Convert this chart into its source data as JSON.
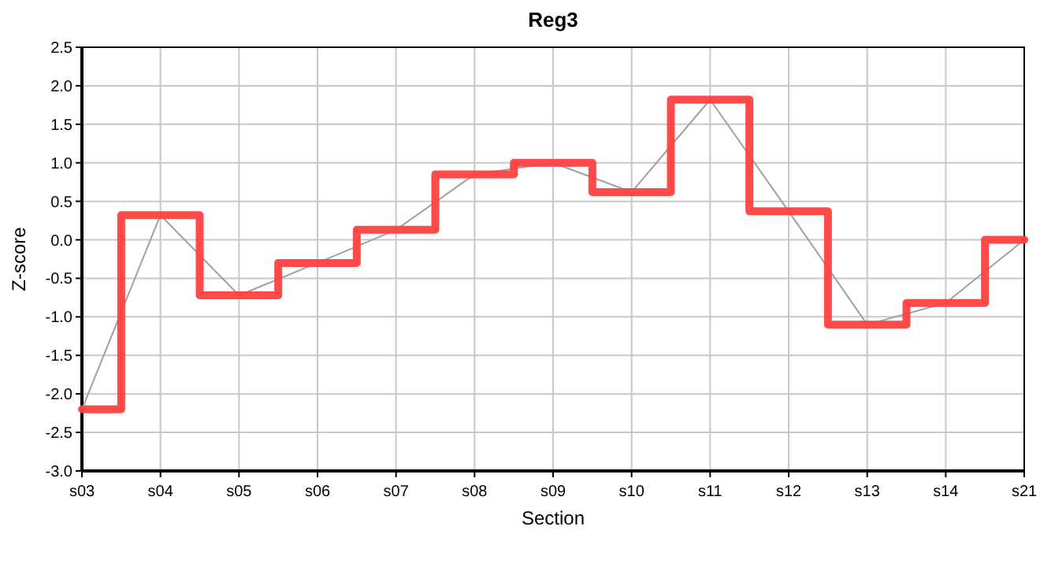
{
  "chart_data": {
    "type": "step",
    "title": "Reg3",
    "xlabel": "Section",
    "ylabel": "Z-score",
    "categories": [
      "s03",
      "s04",
      "s05",
      "s06",
      "s07",
      "s08",
      "s09",
      "s10",
      "s11",
      "s12",
      "s13",
      "s14",
      "s21"
    ],
    "series": [
      {
        "type": "line",
        "color": "#a0a0a0",
        "values": [
          -2.2,
          0.32,
          -0.72,
          -0.3,
          0.13,
          0.85,
          1.0,
          0.62,
          1.82,
          0.37,
          -1.1,
          -0.82,
          0.0
        ]
      },
      {
        "color": "#ff4040",
        "values": [
          -2.2,
          0.32,
          -0.72,
          -0.3,
          0.13,
          0.85,
          1.0,
          0.62,
          1.82,
          0.37,
          -1.1,
          -0.82,
          0.0
        ]
      }
    ],
    "ylim": [
      -3,
      2.5
    ],
    "yticks": [
      {
        "value": -3,
        "label": "-3.0"
      },
      {
        "value": -2.5,
        "label": "-2.5"
      },
      {
        "value": -2,
        "label": "-2.0"
      },
      {
        "value": -1.5,
        "label": "-1.5"
      },
      {
        "value": -1,
        "label": "-1.0"
      },
      {
        "value": -0.5,
        "label": "-0.5"
      },
      {
        "value": 0,
        "label": "0.0"
      },
      {
        "value": 0.5,
        "label": "0.5"
      },
      {
        "value": 1,
        "label": "1.0"
      },
      {
        "value": 1.5,
        "label": "1.5"
      },
      {
        "value": 2,
        "label": "2.0"
      },
      {
        "value": 2.5,
        "label": "2.5"
      }
    ],
    "grid": true
  }
}
